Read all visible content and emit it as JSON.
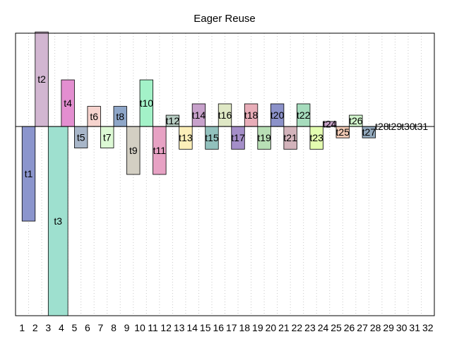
{
  "chart_data": {
    "type": "bar",
    "title": "Eager Reuse",
    "x_ticks": [
      "1",
      "2",
      "3",
      "4",
      "5",
      "6",
      "7",
      "8",
      "9",
      "10",
      "11",
      "12",
      "13",
      "14",
      "15",
      "16",
      "17",
      "18",
      "19",
      "20",
      "21",
      "22",
      "23",
      "24",
      "25",
      "26",
      "27",
      "28",
      "29",
      "30",
      "31",
      "32"
    ],
    "xlim": [
      0.5,
      32.5
    ],
    "ylim": [
      -7.5,
      3.7
    ],
    "grid": "vertical dotted",
    "baseline": 0,
    "bars": [
      {
        "label": "t1",
        "x0": 1,
        "x1": 2,
        "y0": -3.75,
        "y1": 0,
        "color": "#8b95cd"
      },
      {
        "label": "t2",
        "x0": 2,
        "x1": 3,
        "y0": 0,
        "y1": 3.75,
        "color": "#d2b6d1"
      },
      {
        "label": "t3",
        "x0": 3,
        "x1": 4.5,
        "y0": -7.5,
        "y1": 0,
        "color": "#9ee0cf"
      },
      {
        "label": "t4",
        "x0": 4,
        "x1": 5,
        "y0": 0,
        "y1": 1.85,
        "color": "#e38ed0"
      },
      {
        "label": "t5",
        "x0": 5,
        "x1": 6,
        "y0": -0.85,
        "y1": 0,
        "color": "#a8b6c9"
      },
      {
        "label": "t6",
        "x0": 6,
        "x1": 7,
        "y0": 0,
        "y1": 0.8,
        "color": "#f6d3ce"
      },
      {
        "label": "t7",
        "x0": 7,
        "x1": 8,
        "y0": -0.85,
        "y1": 0,
        "color": "#ddf9d5"
      },
      {
        "label": "t8",
        "x0": 8,
        "x1": 9,
        "y0": 0,
        "y1": 0.8,
        "color": "#8ea6c8"
      },
      {
        "label": "t9",
        "x0": 9,
        "x1": 10,
        "y0": -1.9,
        "y1": 0,
        "color": "#d3cfc3"
      },
      {
        "label": "t10",
        "x0": 10,
        "x1": 11,
        "y0": 0,
        "y1": 1.85,
        "color": "#a3f2c8"
      },
      {
        "label": "t11",
        "x0": 11,
        "x1": 12,
        "y0": -1.9,
        "y1": 0,
        "color": "#e7a2c4"
      },
      {
        "label": "t12",
        "x0": 12,
        "x1": 13,
        "y0": 0,
        "y1": 0.45,
        "color": "#b6ccc2"
      },
      {
        "label": "t13",
        "x0": 13,
        "x1": 14,
        "y0": -0.9,
        "y1": 0,
        "color": "#fcefb9"
      },
      {
        "label": "t14",
        "x0": 14,
        "x1": 15,
        "y0": 0,
        "y1": 0.9,
        "color": "#c7a1cb"
      },
      {
        "label": "t15",
        "x0": 15,
        "x1": 16,
        "y0": -0.9,
        "y1": 0,
        "color": "#92c1bd"
      },
      {
        "label": "t16",
        "x0": 16,
        "x1": 17,
        "y0": 0,
        "y1": 0.9,
        "color": "#dfe8c5"
      },
      {
        "label": "t17",
        "x0": 17,
        "x1": 18,
        "y0": -0.9,
        "y1": 0,
        "color": "#a48ec8"
      },
      {
        "label": "t18",
        "x0": 18,
        "x1": 19,
        "y0": 0,
        "y1": 0.9,
        "color": "#e8adb8"
      },
      {
        "label": "t19",
        "x0": 19,
        "x1": 20,
        "y0": -0.9,
        "y1": 0,
        "color": "#b8dfb5"
      },
      {
        "label": "t20",
        "x0": 20,
        "x1": 21,
        "y0": 0,
        "y1": 0.9,
        "color": "#8b91c9"
      },
      {
        "label": "t21",
        "x0": 21,
        "x1": 22,
        "y0": -0.9,
        "y1": 0,
        "color": "#d3b3bb"
      },
      {
        "label": "t22",
        "x0": 22,
        "x1": 23,
        "y0": 0,
        "y1": 0.9,
        "color": "#a6dcbd"
      },
      {
        "label": "t23",
        "x0": 23,
        "x1": 24,
        "y0": -0.9,
        "y1": 0,
        "color": "#e3fdb0"
      },
      {
        "label": "t24",
        "x0": 24,
        "x1": 25,
        "y0": 0,
        "y1": 0.2,
        "color": "#c6a1c7"
      },
      {
        "label": "t25",
        "x0": 25,
        "x1": 26,
        "y0": -0.45,
        "y1": 0,
        "color": "#f2cbb6"
      },
      {
        "label": "t26",
        "x0": 26,
        "x1": 27,
        "y0": 0,
        "y1": 0.45,
        "color": "#d2f5cd"
      },
      {
        "label": "t27",
        "x0": 27,
        "x1": 28,
        "y0": -0.45,
        "y1": 0,
        "color": "#93a9bd"
      },
      {
        "label": "t28",
        "x0": 28,
        "x1": 29,
        "y0": 0,
        "y1": 0,
        "color": "#ffffff"
      },
      {
        "label": "t29",
        "x0": 29,
        "x1": 30,
        "y0": 0,
        "y1": 0,
        "color": "#ffffff"
      },
      {
        "label": "t30",
        "x0": 30,
        "x1": 31,
        "y0": 0,
        "y1": 0,
        "color": "#ffffff"
      },
      {
        "label": "t31",
        "x0": 31,
        "x1": 32,
        "y0": 0,
        "y1": 0,
        "color": "#ffffff"
      }
    ]
  }
}
